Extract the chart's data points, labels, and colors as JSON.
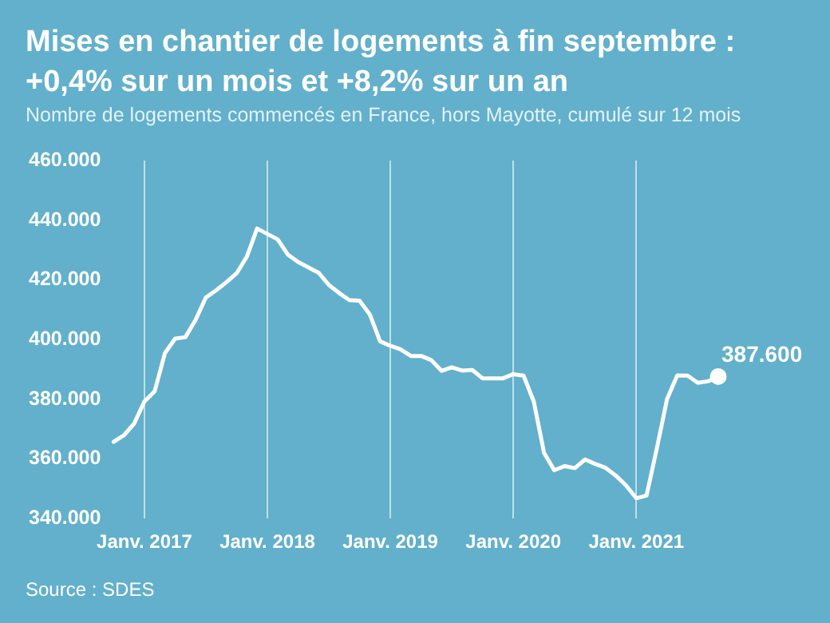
{
  "chart_data": {
    "type": "line",
    "title": "Mises en chantier de logements à fin septembre :\n+0,4% sur un mois et +8,2% sur un an",
    "subtitle": "Nombre de logements commencés en France, hors Mayotte, cumulé sur 12 mois",
    "categories": [
      null,
      null,
      null,
      "Janv. 2017",
      null,
      null,
      null,
      null,
      null,
      null,
      null,
      null,
      null,
      null,
      null,
      "Janv. 2018",
      null,
      null,
      null,
      null,
      null,
      null,
      null,
      null,
      null,
      null,
      null,
      "Janv. 2019",
      null,
      null,
      null,
      null,
      null,
      null,
      null,
      null,
      null,
      null,
      null,
      "Janv. 2020",
      null,
      null,
      null,
      null,
      null,
      null,
      null,
      null,
      null,
      null,
      null,
      "Janv. 2021",
      null,
      null,
      null,
      null,
      null,
      null,
      null,
      null
    ],
    "series": [
      {
        "color": "#ffffff",
        "values": [
          365700,
          367900,
          371800,
          379200,
          382600,
          395400,
          400300,
          400800,
          406600,
          414100,
          416500,
          419200,
          422200,
          427800,
          437200,
          435400,
          433600,
          428500,
          426000,
          424200,
          422400,
          418300,
          415600,
          413200,
          413000,
          408400,
          399400,
          397900,
          396700,
          394500,
          394500,
          393100,
          389500,
          390700,
          389600,
          389800,
          387000,
          387000,
          387000,
          388400,
          387900,
          379200,
          362000,
          356200,
          357600,
          356900,
          359800,
          358300,
          357000,
          354400,
          351100,
          346800,
          347700,
          363400,
          380000,
          388000,
          387900,
          385500,
          386000,
          387600
        ],
        "value_labels": [
          null,
          null,
          null,
          null,
          null,
          null,
          null,
          null,
          null,
          null,
          null,
          null,
          null,
          null,
          null,
          null,
          null,
          null,
          null,
          null,
          null,
          null,
          null,
          null,
          null,
          null,
          null,
          null,
          null,
          null,
          null,
          null,
          null,
          null,
          null,
          null,
          null,
          null,
          null,
          null,
          null,
          null,
          null,
          null,
          null,
          null,
          null,
          null,
          null,
          null,
          null,
          null,
          null,
          null,
          null,
          null,
          null,
          null,
          null,
          "387.600"
        ]
      }
    ],
    "ylim": [
      340000,
      460000
    ],
    "yticks": [
      {
        "value": 340000,
        "label": "340.000"
      },
      {
        "value": 360000,
        "label": "360.000"
      },
      {
        "value": 380000,
        "label": "380.000"
      },
      {
        "value": 400000,
        "label": "400.000"
      },
      {
        "value": 420000,
        "label": "420.000"
      },
      {
        "value": 440000,
        "label": "440.000"
      },
      {
        "value": 460000,
        "label": "460.000"
      }
    ],
    "grid": "x",
    "legend": false,
    "marker": "none",
    "line_style": "solid",
    "annotations": [
      "Source : SDES"
    ]
  }
}
